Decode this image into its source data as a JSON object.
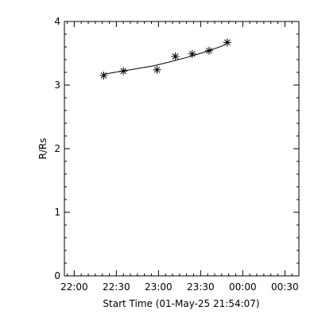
{
  "chart_data": {
    "type": "scatter",
    "title": "",
    "xlabel": "Start Time (01-May-25 21:54:07)",
    "ylabel": "R/Rs",
    "x_ticks": [
      "22:00",
      "22:30",
      "23:00",
      "23:30",
      "00:00",
      "00:30"
    ],
    "x_range": [
      "21:53",
      "00:40"
    ],
    "ylim": [
      0,
      4
    ],
    "y_ticks": [
      "0",
      "1",
      "2",
      "3",
      "4"
    ],
    "grid": false,
    "legend": "none",
    "series": [
      {
        "x": [
          "22:21",
          "22:35",
          "22:59",
          "23:12",
          "23:24",
          "23:36",
          "23:49"
        ],
        "y": [
          3.15,
          3.22,
          3.24,
          3.45,
          3.49,
          3.54,
          3.67
        ]
      }
    ],
    "fit": {
      "x": [
        "22:21",
        "22:33",
        "22:45",
        "22:57",
        "23:09",
        "23:21",
        "23:33",
        "23:45",
        "23:49"
      ],
      "y": [
        3.17,
        3.215,
        3.26,
        3.305,
        3.37,
        3.44,
        3.52,
        3.61,
        3.66
      ]
    }
  }
}
